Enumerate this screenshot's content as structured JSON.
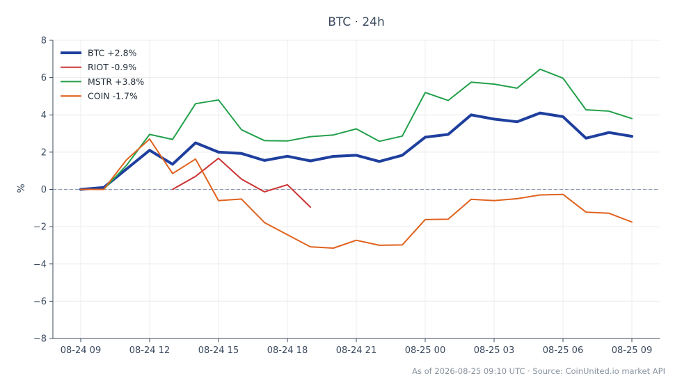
{
  "chart_data": {
    "type": "line",
    "title": "BTC · 24h",
    "xlabel": "",
    "ylabel": "%",
    "ylim": [
      -8,
      8
    ],
    "yticks": [
      -8,
      -6,
      -4,
      -2,
      0,
      2,
      4,
      6,
      8
    ],
    "xtick_labels": [
      "08-24 09",
      "08-24 12",
      "08-24 15",
      "08-24 18",
      "08-24 21",
      "08-25 00",
      "08-25 03",
      "08-25 06",
      "08-25 09"
    ],
    "grid": true,
    "zero_line": true,
    "legend": "top-left",
    "x": [
      "08-24 09",
      "08-24 10",
      "08-24 11",
      "08-24 12",
      "08-24 13",
      "08-24 14",
      "08-24 15",
      "08-24 16",
      "08-24 17",
      "08-24 18",
      "08-24 19",
      "08-24 20",
      "08-24 21",
      "08-24 22",
      "08-24 23",
      "08-25 00",
      "08-25 01",
      "08-25 02",
      "08-25 03",
      "08-25 04",
      "08-25 05",
      "08-25 06",
      "08-25 07",
      "08-25 08",
      "08-25 09"
    ],
    "series": [
      {
        "name": "BTC +2.8%",
        "color": "#1f3f9e",
        "width": 4,
        "values": [
          0.0,
          0.1,
          1.1,
          2.1,
          1.35,
          2.5,
          2.0,
          1.93,
          1.55,
          1.78,
          1.53,
          1.77,
          1.83,
          1.5,
          1.83,
          2.8,
          2.95,
          4.0,
          3.77,
          3.63,
          4.1,
          3.9,
          2.75,
          3.05,
          2.85
        ]
      },
      {
        "name": "RIOT -0.9%",
        "color": "#cc3333",
        "width": 2,
        "values": [
          null,
          null,
          null,
          null,
          0.0,
          0.7,
          1.67,
          0.55,
          -0.13,
          0.25,
          -0.95,
          null,
          null,
          null,
          null,
          null,
          null,
          null,
          null,
          null,
          null,
          null,
          null,
          null,
          null
        ]
      },
      {
        "name": "MSTR +3.8%",
        "color": "#22a04b",
        "width": 2,
        "values": [
          0.0,
          0.0,
          1.3,
          2.95,
          2.68,
          4.6,
          4.8,
          3.2,
          2.62,
          2.6,
          2.83,
          2.92,
          3.25,
          2.58,
          2.86,
          5.2,
          4.77,
          5.75,
          5.65,
          5.43,
          6.45,
          5.97,
          4.27,
          4.2,
          3.8
        ]
      },
      {
        "name": "COIN -1.7%",
        "color": "#e0621d",
        "width": 2,
        "values": [
          0.0,
          0.0,
          1.6,
          2.7,
          0.85,
          1.63,
          -0.6,
          -0.52,
          -1.78,
          -2.43,
          -3.08,
          -3.15,
          -2.73,
          -3.0,
          -2.98,
          -1.62,
          -1.6,
          -0.53,
          -0.6,
          -0.5,
          -0.3,
          -0.27,
          -1.22,
          -1.28,
          -1.75
        ]
      }
    ]
  },
  "footer": "As of 2026-08-25 09:10 UTC · Source: CoinUnited.io market API"
}
